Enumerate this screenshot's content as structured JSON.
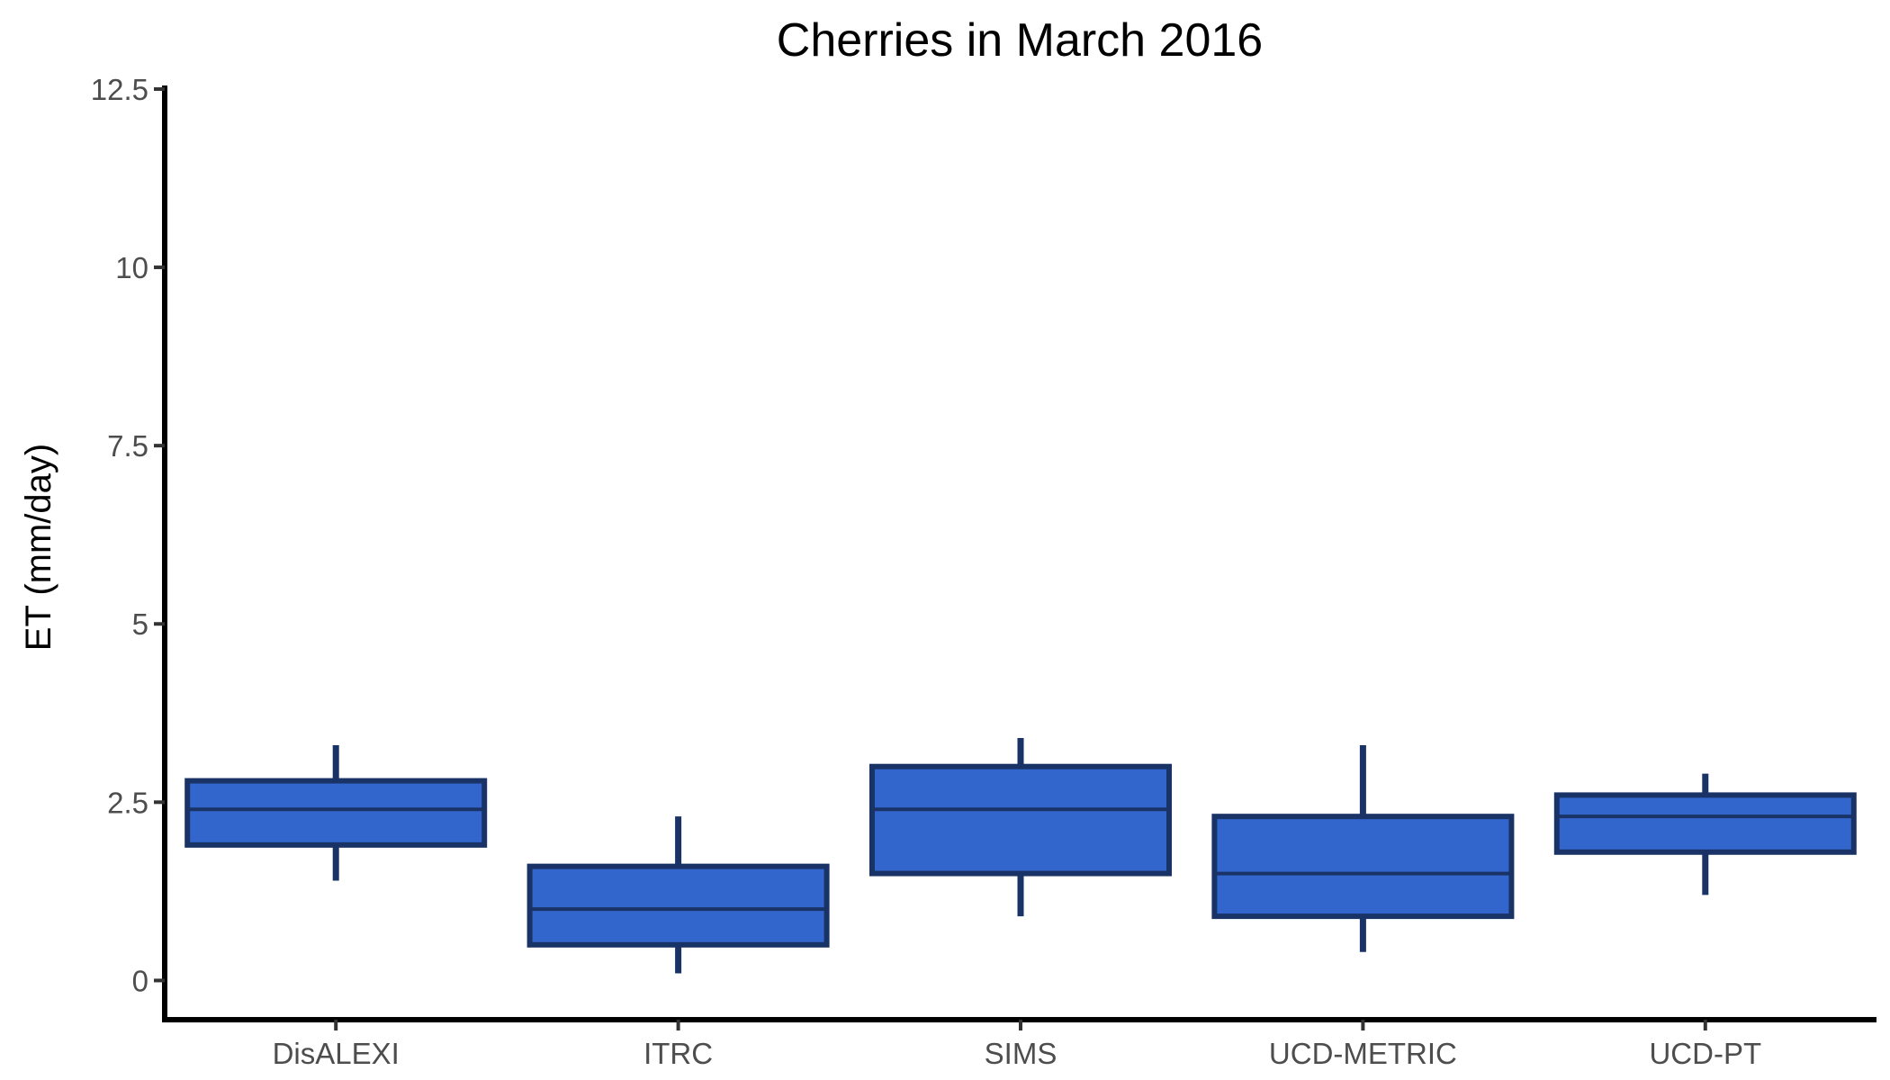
{
  "chart_data": {
    "type": "box",
    "title": "Cherries in March 2016",
    "xlabel": "",
    "ylabel": "ET (mm/day)",
    "ylim": [
      -0.55,
      12.55
    ],
    "y_ticks": [
      0,
      2.5,
      5,
      7.5,
      10,
      12.5
    ],
    "y_tick_labels": [
      "0",
      "2.5",
      "5",
      "7.5",
      "10",
      "12.5"
    ],
    "grid": false,
    "legend": "none",
    "categories": [
      "DisALEXI",
      "ITRC",
      "SIMS",
      "UCD-METRIC",
      "UCD-PT"
    ],
    "boxes": [
      {
        "min": 1.4,
        "q1": 1.9,
        "median": 2.4,
        "q3": 2.8,
        "max": 3.3
      },
      {
        "min": 0.1,
        "q1": 0.5,
        "median": 1.0,
        "q3": 1.6,
        "max": 2.3
      },
      {
        "min": 0.9,
        "q1": 1.5,
        "median": 2.4,
        "q3": 3.0,
        "max": 3.4
      },
      {
        "min": 0.4,
        "q1": 0.9,
        "median": 1.5,
        "q3": 2.3,
        "max": 3.3
      },
      {
        "min": 1.2,
        "q1": 1.8,
        "median": 2.3,
        "q3": 2.6,
        "max": 2.9
      }
    ],
    "colors": {
      "box_fill": "#3366cc",
      "box_outline": "#1a3366",
      "axis": "#000000",
      "tick_label": "#4d4d4d"
    }
  }
}
